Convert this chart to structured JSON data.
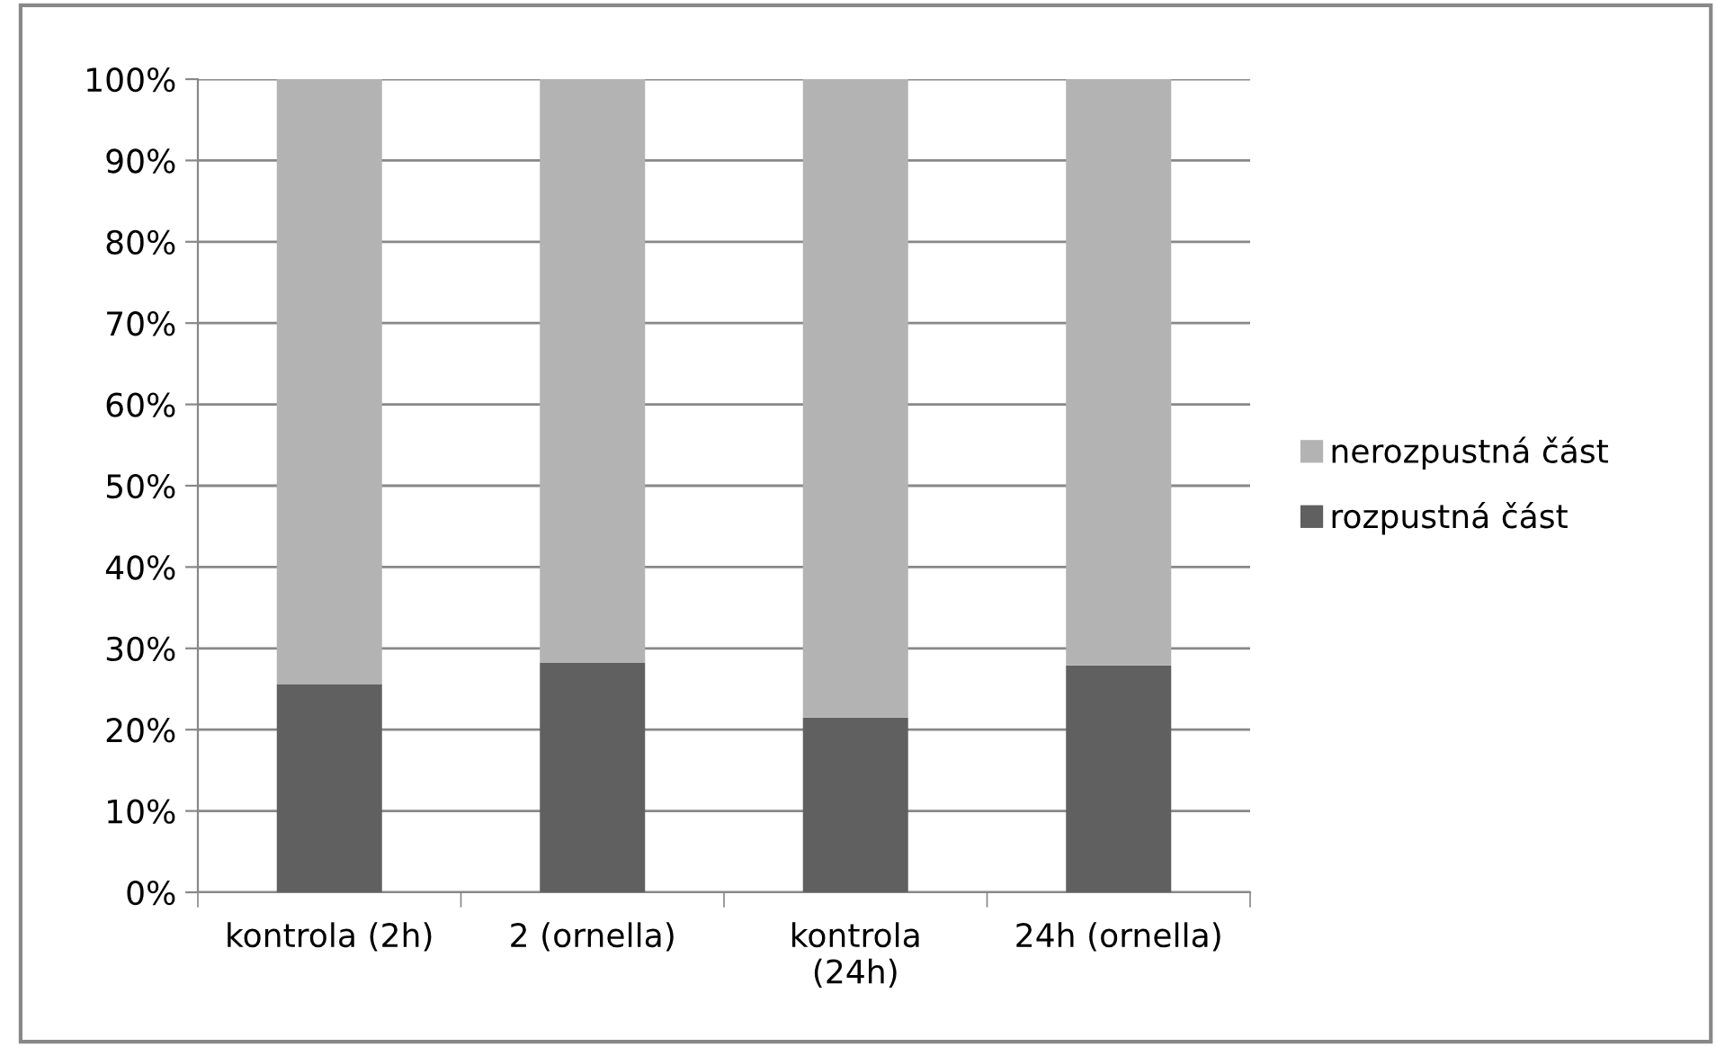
{
  "chart_data": {
    "type": "bar",
    "stacked": true,
    "categories": [
      "kontrola (2h)",
      "2 (ornella)",
      "kontrola\n(24h)",
      "24h (ornella)"
    ],
    "series": [
      {
        "name": "rozpustná část",
        "color": "#606060",
        "values": [
          25.6,
          28.2,
          21.5,
          27.9
        ]
      },
      {
        "name": "nerozpustná část",
        "color": "#b3b3b3",
        "values": [
          74.4,
          71.8,
          78.5,
          72.1
        ]
      }
    ],
    "ylim": [
      0,
      100
    ],
    "yticks": [
      {
        "value": 0,
        "label": "0%"
      },
      {
        "value": 10,
        "label": "10%"
      },
      {
        "value": 20,
        "label": "20%"
      },
      {
        "value": 30,
        "label": "30%"
      },
      {
        "value": 40,
        "label": "40%"
      },
      {
        "value": 50,
        "label": "50%"
      },
      {
        "value": 60,
        "label": "60%"
      },
      {
        "value": 70,
        "label": "70%"
      },
      {
        "value": 80,
        "label": "80%"
      },
      {
        "value": 90,
        "label": "90%"
      },
      {
        "value": 100,
        "label": "100%"
      }
    ],
    "grid": "y",
    "legend": "right"
  }
}
